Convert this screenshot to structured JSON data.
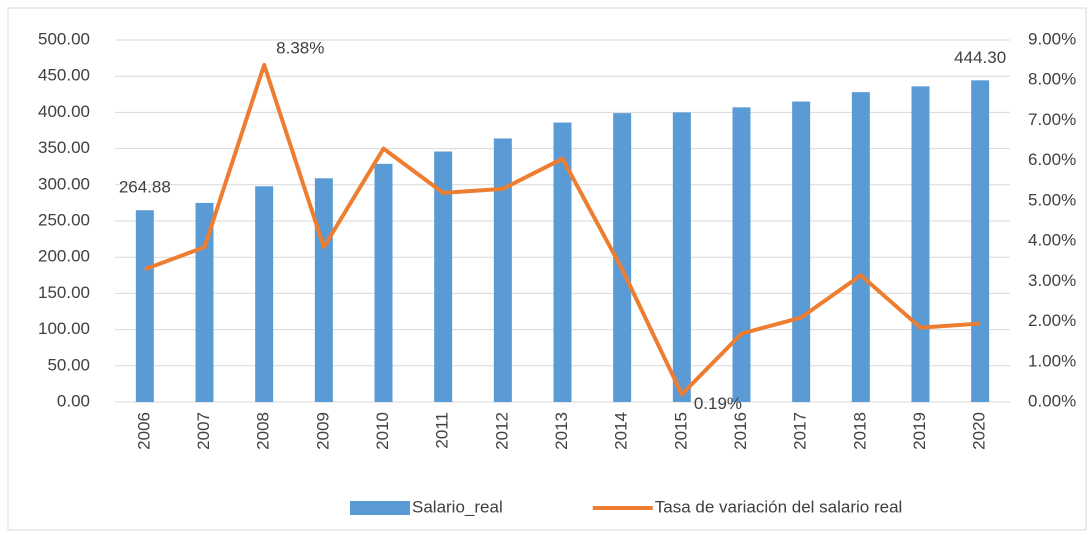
{
  "chart_data": {
    "type": "bar",
    "categories": [
      "2006",
      "2007",
      "2008",
      "2009",
      "2010",
      "2011",
      "2012",
      "2013",
      "2014",
      "2015",
      "2016",
      "2017",
      "2018",
      "2019",
      "2020"
    ],
    "series": [
      {
        "name": "Salario_real",
        "color": "#5b9bd5",
        "type": "bar",
        "values": [
          264.88,
          275,
          298,
          309,
          329,
          346,
          364,
          386,
          399,
          400,
          407,
          415,
          428,
          436,
          444.3
        ],
        "value_labels": [
          "264.88",
          null,
          null,
          null,
          null,
          null,
          null,
          null,
          null,
          null,
          null,
          null,
          null,
          null,
          "444.30"
        ]
      },
      {
        "name": "Tasa de variación del salario real",
        "color": "#ed7d31",
        "type": "line",
        "axis": "y2",
        "values": [
          3.3,
          3.85,
          8.38,
          3.85,
          6.3,
          5.2,
          5.3,
          6.05,
          3.3,
          0.19,
          1.7,
          2.1,
          3.15,
          1.85,
          1.95
        ],
        "value_labels": [
          null,
          null,
          "8.38%",
          null,
          null,
          null,
          null,
          null,
          null,
          "0.19%",
          null,
          null,
          null,
          null,
          null
        ]
      }
    ],
    "ylim": [
      0,
      500
    ],
    "yticks": [
      {
        "value": 0,
        "label": "0.00"
      },
      {
        "value": 50,
        "label": "50.00"
      },
      {
        "value": 100,
        "label": "100.00"
      },
      {
        "value": 150,
        "label": "150.00"
      },
      {
        "value": 200,
        "label": "200.00"
      },
      {
        "value": 250,
        "label": "250.00"
      },
      {
        "value": 300,
        "label": "300.00"
      },
      {
        "value": 350,
        "label": "350.00"
      },
      {
        "value": 400,
        "label": "400.00"
      },
      {
        "value": 450,
        "label": "450.00"
      },
      {
        "value": 500,
        "label": "500.00"
      }
    ],
    "y2lim": [
      0,
      9
    ],
    "y2ticks": [
      {
        "value": 0,
        "label": "0.00%"
      },
      {
        "value": 1,
        "label": "1.00%"
      },
      {
        "value": 2,
        "label": "2.00%"
      },
      {
        "value": 3,
        "label": "3.00%"
      },
      {
        "value": 4,
        "label": "4.00%"
      },
      {
        "value": 5,
        "label": "5.00%"
      },
      {
        "value": 6,
        "label": "6.00%"
      },
      {
        "value": 7,
        "label": "7.00%"
      },
      {
        "value": 8,
        "label": "8.00%"
      },
      {
        "value": 9,
        "label": "9.00%"
      }
    ],
    "grid": true,
    "legend": "bottom"
  }
}
